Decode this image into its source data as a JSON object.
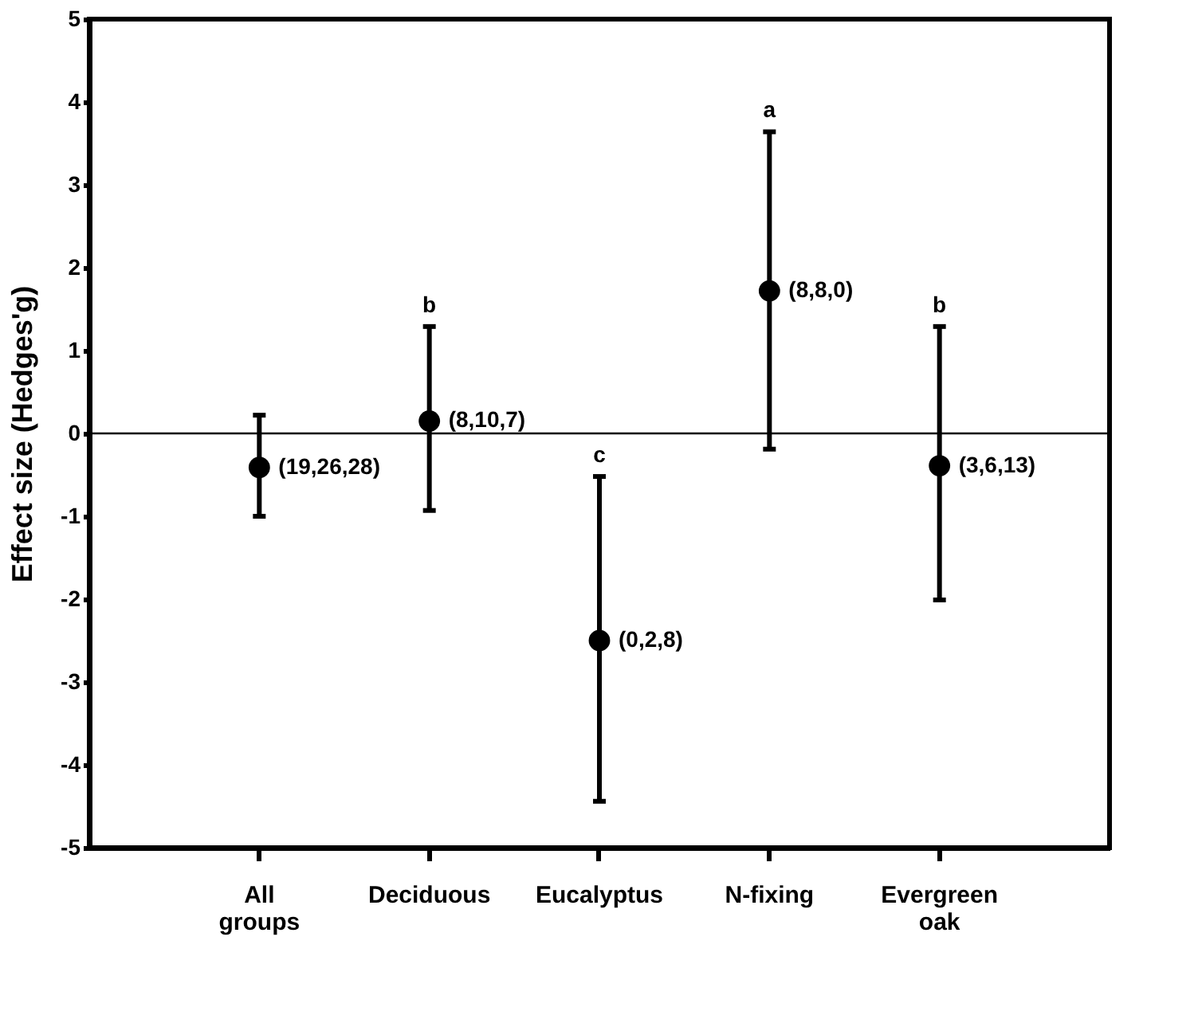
{
  "chart_data": {
    "type": "scatter",
    "ylabel": "Effect size (Hedges'g)",
    "categories": [
      "All groups",
      "Deciduous",
      "Eucalyptus",
      "N-fixing",
      "Evergreen oak"
    ],
    "series": [
      {
        "color": "#000000",
        "values": [
          -0.41,
          0.15,
          -2.5,
          1.72,
          -0.39
        ],
        "errors": [
          [
            -1.0,
            0.22
          ],
          [
            -0.93,
            1.29
          ],
          [
            -4.44,
            -0.52
          ],
          [
            -0.19,
            3.64
          ],
          [
            -2.01,
            1.29
          ]
        ]
      }
    ],
    "ylim": [
      -5,
      5
    ],
    "yticks": [
      -5,
      -4,
      -3,
      -2,
      -1,
      0,
      1,
      2,
      3,
      4,
      5
    ],
    "ref_lines": [
      {
        "axis": "y",
        "value": 0,
        "color": "#000000"
      }
    ],
    "annotations": [
      {
        "text": "(19,26,28)",
        "x": "All groups",
        "y": -0.41
      },
      {
        "text": "(8,10,7)",
        "x": "Deciduous",
        "y": 0.15
      },
      {
        "text": "(0,2,8)",
        "x": "Eucalyptus",
        "y": -2.5
      },
      {
        "text": "(8,8,0)",
        "x": "N-fixing",
        "y": 1.72
      },
      {
        "text": "(3,6,13)",
        "x": "Evergreen oak",
        "y": -0.39
      },
      {
        "text": "b",
        "x": "Deciduous",
        "y": 1.29
      },
      {
        "text": "c",
        "x": "Eucalyptus",
        "y": -0.52
      },
      {
        "text": "a",
        "x": "N-fixing",
        "y": 3.64
      },
      {
        "text": "b",
        "x": "Evergreen oak",
        "y": 1.29
      }
    ],
    "grid": false,
    "marker": "circle"
  }
}
